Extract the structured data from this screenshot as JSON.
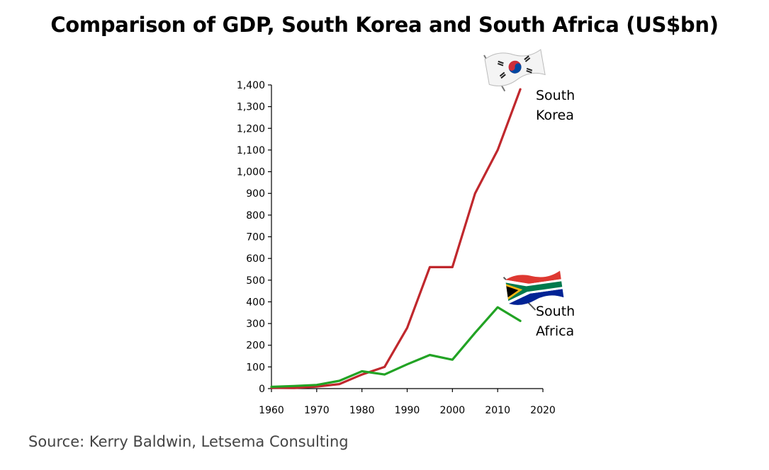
{
  "title": "Comparison of GDP, South Korea and South Africa (US$bn)",
  "source": "Source: Kerry Baldwin, Letsema Consulting",
  "chart_data": {
    "type": "line",
    "title": "Comparison of GDP, South Korea and South Africa (US$bn)",
    "xlabel": "",
    "ylabel": "",
    "xlim": [
      1960,
      2020
    ],
    "ylim": [
      0,
      1400
    ],
    "x_ticks": [
      1960,
      1970,
      1980,
      1990,
      2000,
      2010,
      2020
    ],
    "y_ticks": [
      0,
      100,
      200,
      300,
      400,
      500,
      600,
      700,
      800,
      900,
      1000,
      1100,
      1200,
      1300,
      1400
    ],
    "x_tick_labels": [
      "1960",
      "1970",
      "1980",
      "1990",
      "2000",
      "2010",
      "2020"
    ],
    "y_tick_labels": [
      "0",
      "100",
      "200",
      "300",
      "400",
      "500",
      "600",
      "700",
      "800",
      "900",
      "1,000",
      "1,100",
      "1,200",
      "1,300",
      "1,400"
    ],
    "grid": false,
    "series": [
      {
        "name_lines": [
          "South",
          "Korea"
        ],
        "color": "#c0282d",
        "icon": "south-korea-flag-icon",
        "x": [
          1960,
          1965,
          1970,
          1975,
          1980,
          1985,
          1990,
          1995,
          2000,
          2005,
          2010,
          2015
        ],
        "y": [
          4,
          3,
          9,
          21,
          65,
          100,
          280,
          560,
          560,
          900,
          1100,
          1380
        ]
      },
      {
        "name_lines": [
          "South",
          "Africa"
        ],
        "color": "#22a324",
        "icon": "south-africa-flag-icon",
        "x": [
          1960,
          1965,
          1970,
          1975,
          1980,
          1985,
          1990,
          1995,
          2000,
          2005,
          2010,
          2015
        ],
        "y": [
          8,
          12,
          17,
          36,
          80,
          65,
          112,
          155,
          133,
          257,
          375,
          312
        ]
      }
    ]
  }
}
